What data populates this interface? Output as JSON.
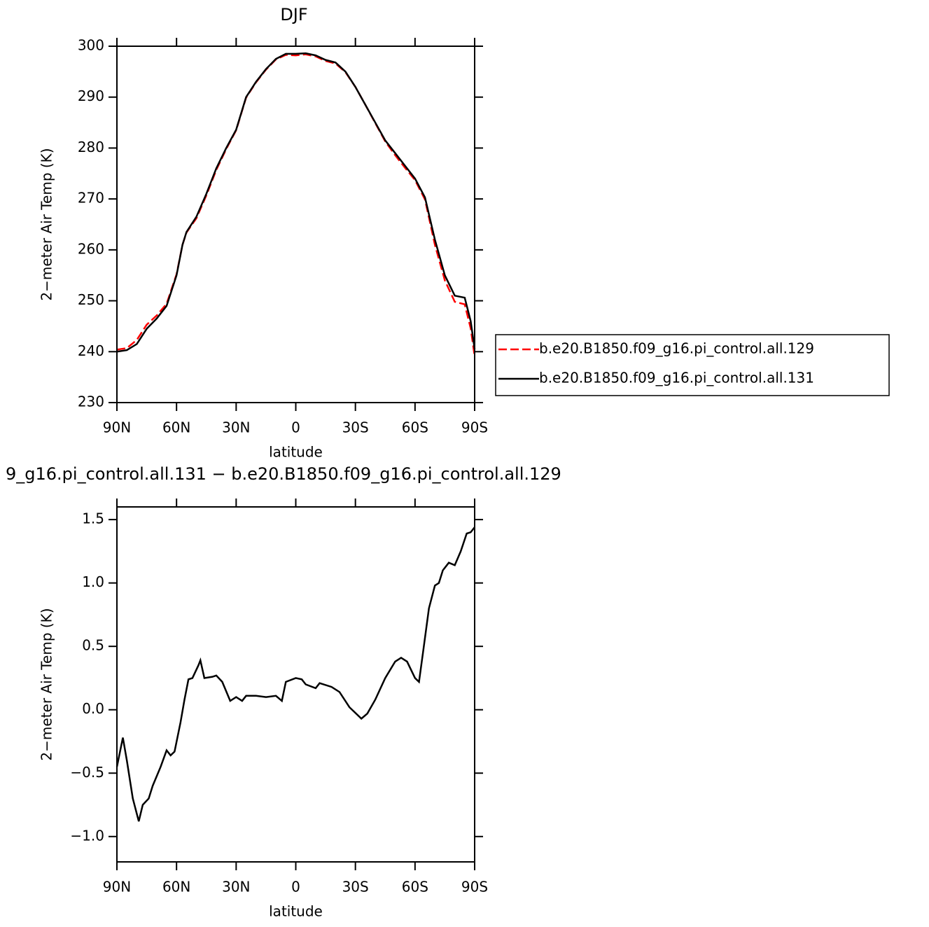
{
  "chart_data": [
    {
      "type": "line",
      "title": "DJF",
      "xlabel": "latitude",
      "ylabel": "2−meter Air Temp (K)",
      "x": [
        90,
        85,
        80,
        75,
        70,
        65,
        60,
        57,
        55,
        50,
        45,
        40,
        35,
        30,
        25,
        20,
        15,
        10,
        5,
        0,
        -5,
        -10,
        -15,
        -20,
        -25,
        -30,
        -35,
        -40,
        -45,
        -50,
        -55,
        -60,
        -65,
        -70,
        -75,
        -80,
        -85,
        -88,
        -90
      ],
      "series": [
        {
          "name": "b.e20.B1850.f09_g16.pi_control.all.129",
          "color": "#ff0000",
          "dash": true,
          "values": [
            240.4,
            240.7,
            242.3,
            245.3,
            247.1,
            249.4,
            255.2,
            261.0,
            263.4,
            266.2,
            270.7,
            275.7,
            279.8,
            283.5,
            289.9,
            292.9,
            295.4,
            297.4,
            298.3,
            298.2,
            298.4,
            298.0,
            297.1,
            296.6,
            294.9,
            292.0,
            288.5,
            284.9,
            281.3,
            278.6,
            276.1,
            273.7,
            269.9,
            261.0,
            254.0,
            249.8,
            249.3,
            244.6,
            239.1
          ]
        },
        {
          "name": "b.e20.B1850.f09_g16.pi_control.all.131",
          "color": "#000000",
          "dash": false,
          "values": [
            240.0,
            240.3,
            241.5,
            244.5,
            246.5,
            249.0,
            255.0,
            261.0,
            263.5,
            266.5,
            271.0,
            276.0,
            280.0,
            283.6,
            290.0,
            293.0,
            295.5,
            297.5,
            298.5,
            298.5,
            298.6,
            298.2,
            297.3,
            296.8,
            295.0,
            292.0,
            288.5,
            285.0,
            281.5,
            279.0,
            276.5,
            274.0,
            270.3,
            262.0,
            255.0,
            251.0,
            250.6,
            246.0,
            240.5
          ]
        }
      ],
      "xlim": [
        90,
        -90
      ],
      "xticks": [
        {
          "value": 90,
          "label": "90N"
        },
        {
          "value": 60,
          "label": "60N"
        },
        {
          "value": 30,
          "label": "30N"
        },
        0,
        {
          "value": -30,
          "label": "30S"
        },
        {
          "value": -60,
          "label": "60S"
        },
        {
          "value": -90,
          "label": "90S"
        }
      ],
      "ylim": [
        230,
        300
      ],
      "yticks": [
        230,
        240,
        250,
        260,
        270,
        280,
        290,
        300
      ],
      "legend": "right"
    },
    {
      "type": "line",
      "title": "9_g16.pi_control.all.131 − b.e20.B1850.f09_g16.pi_control.all.129",
      "xlabel": "latitude",
      "ylabel": "2−meter Air Temp (K)",
      "x": [
        90,
        87,
        85,
        82,
        79,
        77,
        74,
        72,
        68,
        65,
        63,
        61,
        58,
        56,
        54,
        52,
        49,
        48,
        46,
        42,
        40,
        37,
        33,
        30,
        27,
        25,
        20,
        15,
        10,
        7,
        5,
        0,
        -3,
        -5,
        -10,
        -12,
        -18,
        -22,
        -27,
        -33,
        -36,
        -40,
        -45,
        -50,
        -53,
        -56,
        -60,
        -62,
        -64,
        -67,
        -70,
        -72,
        -74,
        -77,
        -80,
        -83,
        -86,
        -88,
        -90
      ],
      "series": [
        {
          "color": "#000000",
          "dash": false,
          "values": [
            -0.45,
            -0.22,
            -0.4,
            -0.7,
            -0.88,
            -0.75,
            -0.7,
            -0.6,
            -0.45,
            -0.32,
            -0.36,
            -0.33,
            -0.1,
            0.08,
            0.24,
            0.25,
            0.35,
            0.39,
            0.25,
            0.26,
            0.27,
            0.22,
            0.07,
            0.1,
            0.07,
            0.11,
            0.11,
            0.1,
            0.11,
            0.07,
            0.22,
            0.25,
            0.24,
            0.2,
            0.17,
            0.21,
            0.18,
            0.14,
            0.02,
            -0.07,
            -0.03,
            0.08,
            0.25,
            0.38,
            0.41,
            0.38,
            0.25,
            0.22,
            0.45,
            0.8,
            0.98,
            1.0,
            1.1,
            1.16,
            1.14,
            1.25,
            1.39,
            1.4,
            1.44
          ]
        }
      ],
      "xlim": [
        90,
        -90
      ],
      "xticks": [
        {
          "value": 90,
          "label": "90N"
        },
        {
          "value": 60,
          "label": "60N"
        },
        {
          "value": 30,
          "label": "30N"
        },
        0,
        {
          "value": -30,
          "label": "30S"
        },
        {
          "value": -60,
          "label": "60S"
        },
        {
          "value": -90,
          "label": "90S"
        }
      ],
      "ylim": [
        -1.2,
        1.6
      ],
      "yticks": [
        {
          "value": -1.0,
          "label": "−1.0"
        },
        {
          "value": -0.5,
          "label": "−0.5"
        },
        {
          "value": 0,
          "label": "0.0"
        },
        0.5,
        {
          "value": 1.0,
          "label": "1.0"
        },
        1.5
      ]
    }
  ]
}
